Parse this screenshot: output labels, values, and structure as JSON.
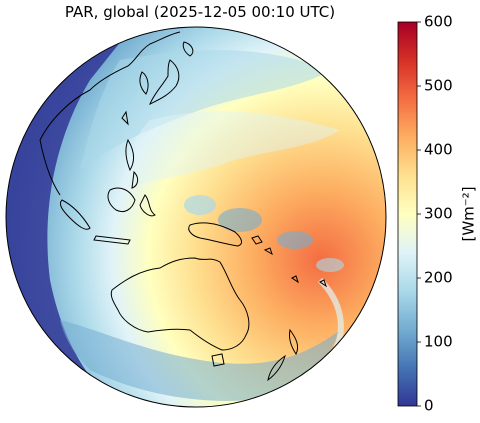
{
  "title": "PAR, global (2025-12-05 00:10 UTC)",
  "colorbar": {
    "label": "[Wm⁻²]",
    "min": 0,
    "max": 600,
    "ticks": [
      "0",
      "100",
      "200",
      "300",
      "400",
      "500",
      "600"
    ],
    "colormap": "RdYlBu_r",
    "stops": [
      "#313695",
      "#4575b4",
      "#74add1",
      "#abd9e9",
      "#e0f3f8",
      "#ffffbf",
      "#fee090",
      "#fdae61",
      "#f46d43",
      "#d73027",
      "#a50026"
    ]
  },
  "map": {
    "projection": "geostationary full disk",
    "region": "Asia-Pacific / Australia"
  }
}
